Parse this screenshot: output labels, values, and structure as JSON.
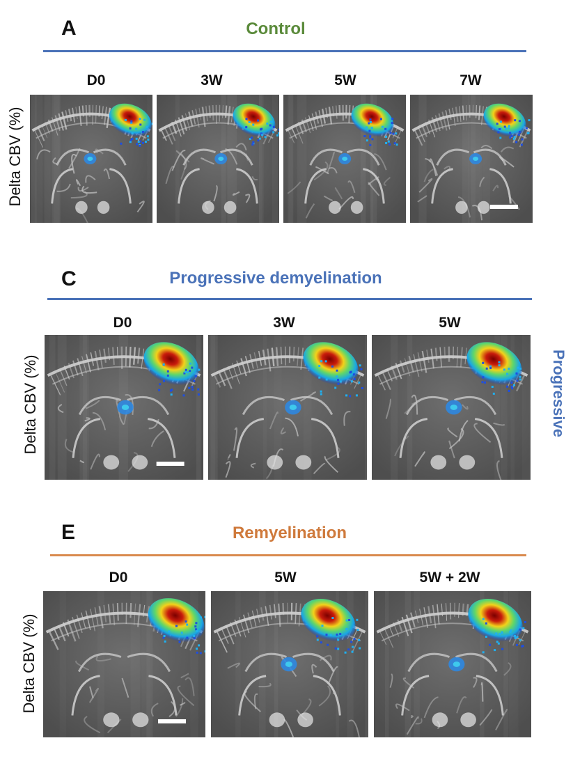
{
  "colors": {
    "control": "#5a8a3a",
    "progressive": "#4a72b8",
    "remyelination": "#cf7a3c",
    "rule_blue": "#4a72b8",
    "rule_orange": "#d98a4e"
  },
  "sections": [
    {
      "letter": "A",
      "title": "Control",
      "ylabel": "Delta CBV (%)",
      "timepoints": [
        "D0",
        "3W",
        "5W",
        "7W"
      ]
    },
    {
      "letter": "C",
      "title": "Progressive demyelination",
      "ylabel": "Delta CBV (%)",
      "side_label": "Progressive",
      "timepoints": [
        "D0",
        "3W",
        "5W"
      ]
    },
    {
      "letter": "E",
      "title": "Remyelination",
      "ylabel": "Delta CBV (%)",
      "timepoints": [
        "D0",
        "5W",
        "5W + 2W"
      ]
    }
  ]
}
